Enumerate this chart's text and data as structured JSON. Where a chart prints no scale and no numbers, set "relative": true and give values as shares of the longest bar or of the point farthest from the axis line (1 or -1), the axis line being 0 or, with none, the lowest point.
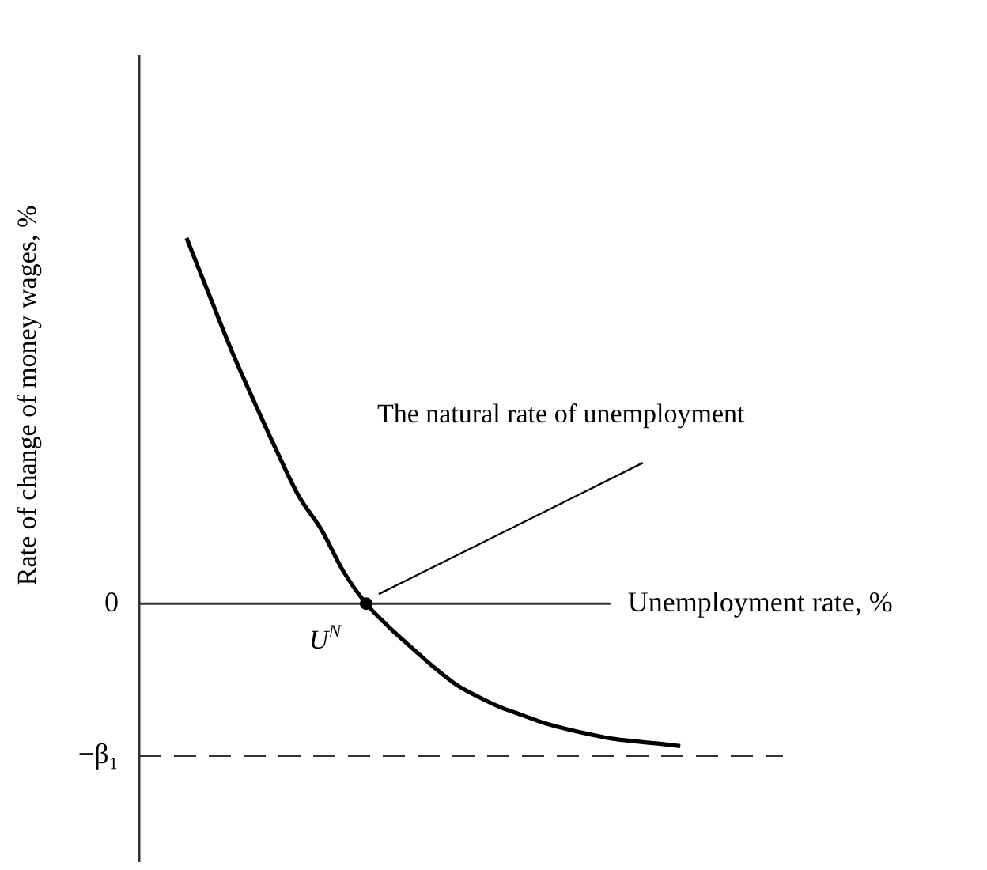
{
  "chart_data": {
    "type": "line",
    "relative": true,
    "ylabel": "Rate of change of money wages, %",
    "xlabel": "Unemployment rate, %",
    "categories": [
      null,
      null,
      null,
      null,
      null,
      null,
      null,
      null,
      null,
      null,
      null,
      null,
      null,
      null,
      null,
      null,
      null,
      null,
      null,
      null,
      null,
      null,
      null
    ],
    "series": [
      {
        "color": "#000000",
        "values": [
          1,
          0.846,
          0.693,
          0.554,
          0.42,
          0.294,
          0.203,
          0.087,
          0,
          -0.063,
          -0.119,
          -0.173,
          -0.221,
          -0.255,
          -0.284,
          -0.306,
          -0.328,
          -0.344,
          -0.358,
          -0.37,
          -0.377,
          -0.383,
          -0.39
        ]
      }
    ],
    "ref_lines": [
      {
        "axis": "y",
        "value": 0,
        "label": "0",
        "line_style": "solid"
      },
      {
        "axis": "y",
        "value": -0.416,
        "label": "−β₁",
        "line_style": "dashed"
      }
    ],
    "annotations": [
      {
        "text": "U$^{N}$",
        "y": 0
      },
      "The natural rate of unemployment"
    ],
    "marker": "none",
    "line_style": "solid",
    "legend": false
  }
}
